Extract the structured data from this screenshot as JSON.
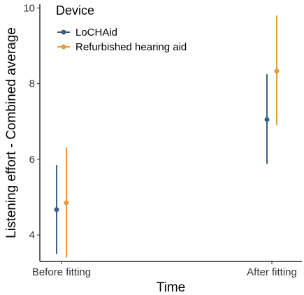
{
  "chart_data": {
    "type": "scatter",
    "subtype": "point-with-error-bars",
    "title": "",
    "xlabel": "Time",
    "ylabel": "Listening effort - Combined average",
    "categories": [
      "Before fitting",
      "After fitting"
    ],
    "ylim": [
      3.3,
      10.1
    ],
    "yticks": [
      4,
      6,
      8,
      10
    ],
    "grid": false,
    "legend": {
      "title": "Device",
      "position": "top-left"
    },
    "series": [
      {
        "name": "LoCHAid",
        "color": "#3b5f85",
        "values": [
          4.67,
          7.05
        ],
        "lower": [
          3.5,
          5.88
        ],
        "upper": [
          5.85,
          8.25
        ]
      },
      {
        "name": "Refurbished hearing aid",
        "color": "#e99a3c",
        "values": [
          4.85,
          8.33
        ],
        "lower": [
          3.4,
          6.9
        ],
        "upper": [
          6.32,
          9.8
        ]
      }
    ]
  }
}
